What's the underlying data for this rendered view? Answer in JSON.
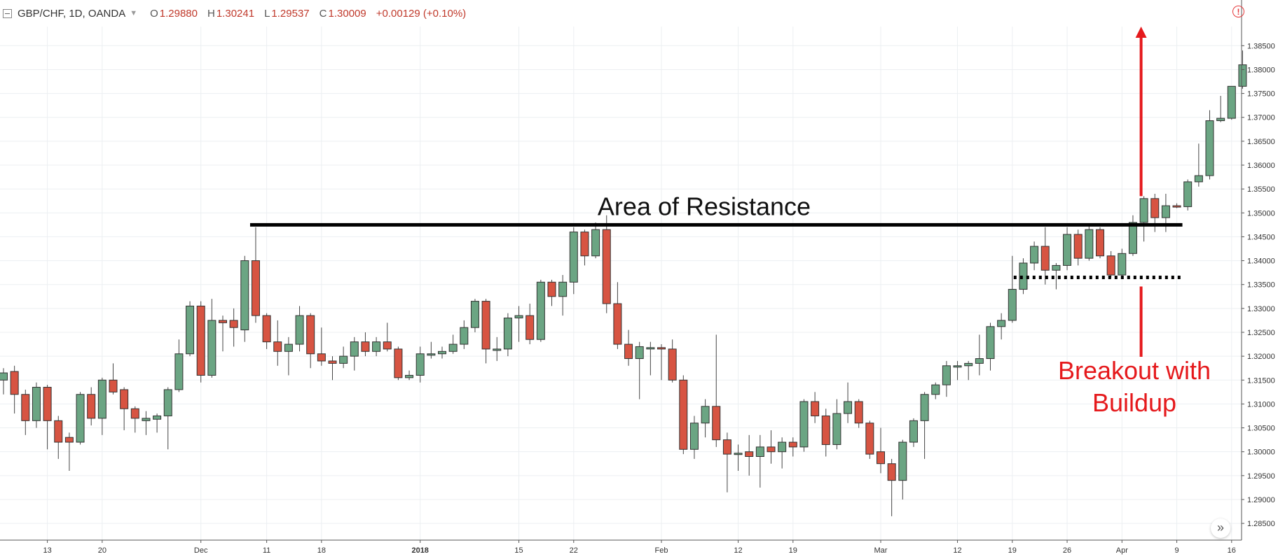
{
  "header": {
    "symbol": "GBP/CHF, 1D, OANDA",
    "ohlc": [
      {
        "key": "O",
        "value": "1.29880"
      },
      {
        "key": "H",
        "value": "1.30241"
      },
      {
        "key": "L",
        "value": "1.29537"
      },
      {
        "key": "C",
        "value": "1.30009"
      }
    ],
    "change": "+0.00129 (+0.10%)",
    "alert_icon": "exclamation-circle-icon",
    "scroll_icon": "double-chevron-right-icon"
  },
  "colors": {
    "up": "#6ba583",
    "down": "#d75442",
    "grid": "#eceff2",
    "axis": "#333333",
    "annotation": "#e5191c"
  },
  "chart_data": {
    "type": "candlestick",
    "title": "",
    "xlabel": "",
    "ylabel": "",
    "ylim": [
      1.2815,
      1.389
    ],
    "y_ticks": [
      "1.28500",
      "1.29000",
      "1.29500",
      "1.30000",
      "1.30500",
      "1.31000",
      "1.31500",
      "1.32000",
      "1.32500",
      "1.33000",
      "1.33500",
      "1.34000",
      "1.34500",
      "1.35000",
      "1.35500",
      "1.36000",
      "1.36500",
      "1.37000",
      "1.37500",
      "1.38000",
      "1.38500"
    ],
    "x_ticks": [
      {
        "label": "13",
        "bar": 4
      },
      {
        "label": "20",
        "bar": 9
      },
      {
        "label": "Dec",
        "bar": 18
      },
      {
        "label": "11",
        "bar": 24
      },
      {
        "label": "18",
        "bar": 29
      },
      {
        "label": "2018",
        "bar": 38,
        "bold": true
      },
      {
        "label": "15",
        "bar": 47
      },
      {
        "label": "22",
        "bar": 52
      },
      {
        "label": "Feb",
        "bar": 60
      },
      {
        "label": "12",
        "bar": 67
      },
      {
        "label": "19",
        "bar": 72
      },
      {
        "label": "Mar",
        "bar": 80
      },
      {
        "label": "12",
        "bar": 87
      },
      {
        "label": "19",
        "bar": 92
      },
      {
        "label": "26",
        "bar": 97
      },
      {
        "label": "Apr",
        "bar": 102
      },
      {
        "label": "9",
        "bar": 107
      },
      {
        "label": "16",
        "bar": 112
      }
    ],
    "candles": [
      [
        1.315,
        1.3175,
        1.312,
        1.3165
      ],
      [
        1.3168,
        1.318,
        1.308,
        1.312
      ],
      [
        1.312,
        1.313,
        1.3035,
        1.3065
      ],
      [
        1.3065,
        1.3145,
        1.305,
        1.3135
      ],
      [
        1.3135,
        1.314,
        1.3005,
        1.3065
      ],
      [
        1.3065,
        1.3075,
        1.2985,
        1.302
      ],
      [
        1.303,
        1.304,
        1.296,
        1.302
      ],
      [
        1.302,
        1.3125,
        1.3015,
        1.312
      ],
      [
        1.312,
        1.3135,
        1.3055,
        1.307
      ],
      [
        1.307,
        1.3155,
        1.3035,
        1.315
      ],
      [
        1.315,
        1.3185,
        1.312,
        1.3125
      ],
      [
        1.313,
        1.3135,
        1.3045,
        1.309
      ],
      [
        1.309,
        1.3095,
        1.304,
        1.307
      ],
      [
        1.3065,
        1.3085,
        1.3035,
        1.307
      ],
      [
        1.3068,
        1.308,
        1.304,
        1.3075
      ],
      [
        1.3075,
        1.3135,
        1.3005,
        1.313
      ],
      [
        1.313,
        1.3235,
        1.3125,
        1.3205
      ],
      [
        1.3205,
        1.3315,
        1.32,
        1.3305
      ],
      [
        1.3305,
        1.3315,
        1.3145,
        1.316
      ],
      [
        1.316,
        1.332,
        1.3155,
        1.3275
      ],
      [
        1.3275,
        1.3285,
        1.321,
        1.327
      ],
      [
        1.3275,
        1.33,
        1.322,
        1.326
      ],
      [
        1.3255,
        1.341,
        1.323,
        1.34
      ],
      [
        1.34,
        1.347,
        1.327,
        1.3285
      ],
      [
        1.3285,
        1.329,
        1.3215,
        1.323
      ],
      [
        1.323,
        1.3275,
        1.318,
        1.321
      ],
      [
        1.321,
        1.324,
        1.316,
        1.3225
      ],
      [
        1.3225,
        1.3305,
        1.321,
        1.3285
      ],
      [
        1.3285,
        1.329,
        1.3175,
        1.3205
      ],
      [
        1.3205,
        1.326,
        1.318,
        1.319
      ],
      [
        1.319,
        1.32,
        1.315,
        1.3185
      ],
      [
        1.3185,
        1.322,
        1.3175,
        1.32
      ],
      [
        1.32,
        1.324,
        1.317,
        1.323
      ],
      [
        1.323,
        1.325,
        1.32,
        1.321
      ],
      [
        1.321,
        1.324,
        1.32,
        1.323
      ],
      [
        1.323,
        1.327,
        1.321,
        1.3215
      ],
      [
        1.3215,
        1.322,
        1.315,
        1.3155
      ],
      [
        1.3155,
        1.317,
        1.315,
        1.316
      ],
      [
        1.316,
        1.322,
        1.3145,
        1.3205
      ],
      [
        1.3205,
        1.323,
        1.3195,
        1.3205
      ],
      [
        1.3205,
        1.322,
        1.3195,
        1.321
      ],
      [
        1.321,
        1.3245,
        1.3205,
        1.3225
      ],
      [
        1.3225,
        1.3275,
        1.3215,
        1.326
      ],
      [
        1.326,
        1.332,
        1.325,
        1.3315
      ],
      [
        1.3315,
        1.332,
        1.3185,
        1.3215
      ],
      [
        1.3215,
        1.324,
        1.319,
        1.3215
      ],
      [
        1.3215,
        1.329,
        1.32,
        1.328
      ],
      [
        1.328,
        1.3305,
        1.323,
        1.3285
      ],
      [
        1.3285,
        1.331,
        1.3225,
        1.3235
      ],
      [
        1.3235,
        1.336,
        1.323,
        1.3355
      ],
      [
        1.3355,
        1.336,
        1.3305,
        1.3325
      ],
      [
        1.3325,
        1.337,
        1.3285,
        1.3355
      ],
      [
        1.3355,
        1.347,
        1.333,
        1.346
      ],
      [
        1.346,
        1.3465,
        1.339,
        1.341
      ],
      [
        1.341,
        1.348,
        1.3405,
        1.3465
      ],
      [
        1.3465,
        1.3495,
        1.329,
        1.331
      ],
      [
        1.331,
        1.3355,
        1.3215,
        1.3225
      ],
      [
        1.3225,
        1.3255,
        1.318,
        1.3195
      ],
      [
        1.3195,
        1.323,
        1.311,
        1.322
      ],
      [
        1.3218,
        1.323,
        1.316,
        1.3218
      ],
      [
        1.3218,
        1.3225,
        1.315,
        1.3215
      ],
      [
        1.3215,
        1.3235,
        1.3145,
        1.315
      ],
      [
        1.315,
        1.316,
        1.2995,
        1.3005
      ],
      [
        1.3005,
        1.3075,
        1.2985,
        1.306
      ],
      [
        1.306,
        1.311,
        1.303,
        1.3095
      ],
      [
        1.3095,
        1.3245,
        1.301,
        1.3025
      ],
      [
        1.3025,
        1.304,
        1.2915,
        1.2995
      ],
      [
        1.2995,
        1.3015,
        1.296,
        1.2997
      ],
      [
        1.3,
        1.3035,
        1.295,
        1.299
      ],
      [
        1.299,
        1.3035,
        1.2925,
        1.301
      ],
      [
        1.301,
        1.3045,
        1.2975,
        1.3
      ],
      [
        1.3,
        1.303,
        1.2965,
        1.302
      ],
      [
        1.302,
        1.303,
        1.299,
        1.301
      ],
      [
        1.301,
        1.311,
        1.3,
        1.3105
      ],
      [
        1.3105,
        1.3125,
        1.306,
        1.3075
      ],
      [
        1.3075,
        1.309,
        1.299,
        1.3015
      ],
      [
        1.3015,
        1.311,
        1.3005,
        1.308
      ],
      [
        1.308,
        1.3145,
        1.306,
        1.3105
      ],
      [
        1.3105,
        1.311,
        1.305,
        1.306
      ],
      [
        1.306,
        1.3065,
        1.2985,
        1.2995
      ],
      [
        1.3,
        1.305,
        1.2955,
        1.2975
      ],
      [
        1.2975,
        1.2985,
        1.2865,
        1.294
      ],
      [
        1.294,
        1.3025,
        1.29,
        1.302
      ],
      [
        1.302,
        1.307,
        1.301,
        1.3065
      ],
      [
        1.3065,
        1.3125,
        1.2985,
        1.312
      ],
      [
        1.312,
        1.3145,
        1.311,
        1.314
      ],
      [
        1.314,
        1.319,
        1.3115,
        1.318
      ],
      [
        1.3178,
        1.319,
        1.315,
        1.318
      ],
      [
        1.318,
        1.319,
        1.315,
        1.3185
      ],
      [
        1.3185,
        1.3245,
        1.316,
        1.3195
      ],
      [
        1.3195,
        1.327,
        1.317,
        1.3262
      ],
      [
        1.3262,
        1.329,
        1.3235,
        1.3275
      ],
      [
        1.3275,
        1.341,
        1.327,
        1.334
      ],
      [
        1.334,
        1.3405,
        1.333,
        1.3395
      ],
      [
        1.3395,
        1.344,
        1.338,
        1.343
      ],
      [
        1.343,
        1.347,
        1.335,
        1.338
      ],
      [
        1.338,
        1.3395,
        1.334,
        1.339
      ],
      [
        1.339,
        1.347,
        1.338,
        1.3455
      ],
      [
        1.3455,
        1.3465,
        1.339,
        1.3405
      ],
      [
        1.3405,
        1.3475,
        1.34,
        1.3465
      ],
      [
        1.3465,
        1.347,
        1.3405,
        1.341
      ],
      [
        1.341,
        1.342,
        1.3365,
        1.337
      ],
      [
        1.337,
        1.3425,
        1.3365,
        1.3415
      ],
      [
        1.3415,
        1.3495,
        1.341,
        1.348
      ],
      [
        1.348,
        1.3535,
        1.344,
        1.353
      ],
      [
        1.353,
        1.354,
        1.346,
        1.349
      ],
      [
        1.349,
        1.354,
        1.346,
        1.3515
      ],
      [
        1.3515,
        1.352,
        1.351,
        1.3513
      ],
      [
        1.3513,
        1.357,
        1.3505,
        1.3565
      ],
      [
        1.3565,
        1.3645,
        1.3555,
        1.3578
      ],
      [
        1.3578,
        1.3715,
        1.357,
        1.3693
      ],
      [
        1.3693,
        1.3745,
        1.369,
        1.3698
      ],
      [
        1.3698,
        1.3765,
        1.3695,
        1.3765
      ],
      [
        1.3765,
        1.384,
        1.376,
        1.381
      ]
    ],
    "annotations": {
      "resistance_label": "Area of Resistance",
      "resistance_level": 1.3475,
      "resistance_from_bar": 23,
      "resistance_to_bar": 107,
      "buildup_level": 1.3365,
      "buildup_from_bar": 92,
      "buildup_to_bar": 107,
      "breakout_label_line1": "Breakout with",
      "breakout_label_line2": "Buildup",
      "arrow_bar": 104
    },
    "grid": true,
    "legend": "none"
  }
}
